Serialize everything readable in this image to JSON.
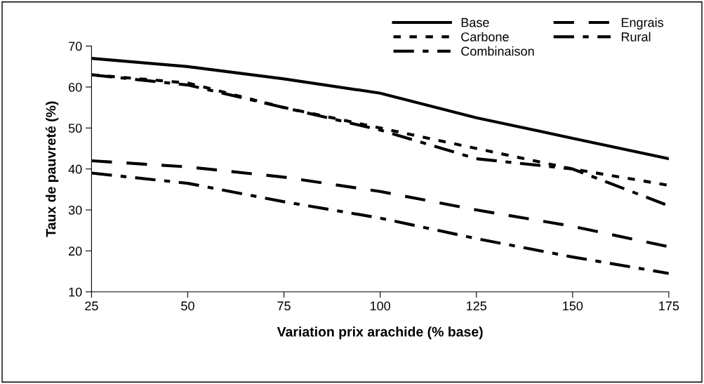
{
  "chart_data": {
    "type": "line",
    "xlabel": "Variation prix arachide (% base)",
    "ylabel": "Taux de pauvreté (%)",
    "x": [
      25,
      50,
      75,
      100,
      125,
      150,
      175
    ],
    "series": [
      {
        "name": "Base",
        "color": "#000000",
        "line_style": "solid",
        "values": [
          67,
          65,
          62,
          58.5,
          52.5,
          47.5,
          42.5
        ]
      },
      {
        "name": "Carbone",
        "color": "#000000",
        "line_style": "dotted",
        "values": [
          63,
          61,
          55,
          50,
          45,
          40,
          36
        ]
      },
      {
        "name": "Combinaison",
        "color": "#000000",
        "line_style": "dashdot",
        "values": [
          63,
          60.5,
          55,
          49.5,
          42.5,
          40,
          31
        ]
      },
      {
        "name": "Engrais",
        "color": "#000000",
        "line_style": "dashed",
        "values": [
          42,
          40.5,
          38,
          34.5,
          30,
          26,
          21
        ]
      },
      {
        "name": "Rural",
        "color": "#000000",
        "line_style": "dashdot",
        "values": [
          39,
          36.5,
          32,
          28,
          23,
          18.5,
          14.5
        ]
      }
    ],
    "xlim": [
      25,
      175
    ],
    "xticks": [
      25,
      50,
      75,
      100,
      125,
      150,
      175
    ],
    "ylim": [
      10,
      70
    ],
    "yticks": [
      10,
      20,
      30,
      40,
      50,
      60,
      70
    ],
    "grid": false,
    "legend": "top right",
    "marker": "none"
  }
}
